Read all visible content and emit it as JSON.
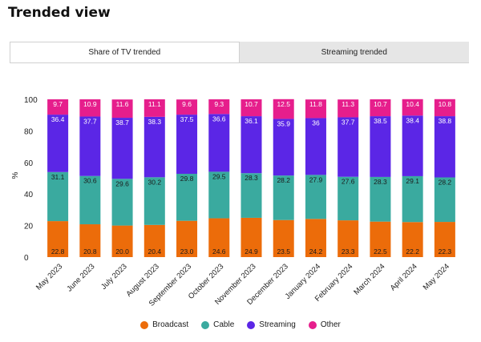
{
  "page": {
    "title": "Trended view"
  },
  "tabs": [
    {
      "label": "Share of TV trended",
      "active": true
    },
    {
      "label": "Streaming trended",
      "active": false
    }
  ],
  "colors": {
    "broadcast": "#ec6c0a",
    "cable": "#3aaa9f",
    "streaming": "#5b26e6",
    "other": "#e61e8c",
    "tab_active_bg": "#ffffff",
    "tab_inactive_bg": "#e6e6e6"
  },
  "chart_data": {
    "type": "bar",
    "stacked": true,
    "title": "",
    "xlabel": "",
    "ylabel": "%",
    "ylim": [
      0,
      100
    ],
    "yticks": [
      0,
      20,
      40,
      60,
      80,
      100
    ],
    "grid": false,
    "legend_position": "bottom",
    "categories": [
      "May 2023",
      "June 2023",
      "July 2023",
      "August 2023",
      "September 2023",
      "October 2023",
      "November 2023",
      "December 2023",
      "January 2024",
      "February 2024",
      "March 2024",
      "April 2024",
      "May 2024"
    ],
    "series": [
      {
        "name": "Broadcast",
        "color": "#ec6c0a",
        "values": [
          22.8,
          20.8,
          20.0,
          20.4,
          23.0,
          24.6,
          24.9,
          23.5,
          24.2,
          23.3,
          22.5,
          22.2,
          22.3
        ],
        "labels": [
          "22.8",
          "20.8",
          "20.0",
          "20.4",
          "23.0",
          "24.6",
          "24.9",
          "23.5",
          "24.2",
          "23.3",
          "22.5",
          "22.2",
          "22.3"
        ]
      },
      {
        "name": "Cable",
        "color": "#3aaa9f",
        "values": [
          31.1,
          30.6,
          29.6,
          30.2,
          29.8,
          29.5,
          28.3,
          28.2,
          27.9,
          27.6,
          28.3,
          29.1,
          28.2
        ],
        "labels": [
          "31.1",
          "30.6",
          "29.6",
          "30.2",
          "29.8",
          "29.5",
          "28.3",
          "28.2",
          "27.9",
          "27.6",
          "28.3",
          "29.1",
          "28.2"
        ]
      },
      {
        "name": "Streaming",
        "color": "#5b26e6",
        "values": [
          36.4,
          37.7,
          38.7,
          38.3,
          37.5,
          36.6,
          36.1,
          35.9,
          36,
          37.7,
          38.5,
          38.4,
          38.8
        ],
        "labels": [
          "36.4",
          "37.7",
          "38.7",
          "38.3",
          "37.5",
          "36.6",
          "36.1",
          "35.9",
          "36",
          "37.7",
          "38.5",
          "38.4",
          "38.8"
        ]
      },
      {
        "name": "Other",
        "color": "#e61e8c",
        "values": [
          9.7,
          10.9,
          11.6,
          11.1,
          9.6,
          9.3,
          10.7,
          12.5,
          11.8,
          11.3,
          10.7,
          10.4,
          10.8
        ],
        "labels": [
          "9.7",
          "10.9",
          "11.6",
          "11.1",
          "9.6",
          "9.3",
          "10.7",
          "12.5",
          "11.8",
          "11.3",
          "10.7",
          "10.4",
          "10.8"
        ]
      }
    ]
  }
}
